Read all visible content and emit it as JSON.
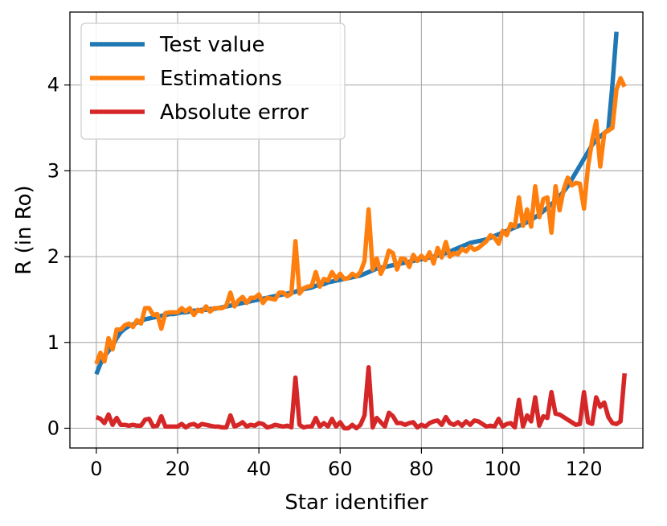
{
  "chart_data": {
    "type": "line",
    "xlabel": "Star identifier",
    "ylabel": "R (in Ro)",
    "xlim": [
      -6.5,
      134.5
    ],
    "ylim": [
      -0.23,
      4.85
    ],
    "xticks": [
      0,
      20,
      40,
      60,
      80,
      100,
      120
    ],
    "yticks": [
      0,
      1,
      2,
      3,
      4
    ],
    "grid": true,
    "legend": "top-left",
    "series": [
      {
        "name": "Test value",
        "color": "#1f77b4",
        "values": [
          0.63,
          0.75,
          0.84,
          0.9,
          0.96,
          1.05,
          1.12,
          1.16,
          1.19,
          1.21,
          1.23,
          1.25,
          1.27,
          1.28,
          1.29,
          1.3,
          1.31,
          1.32,
          1.33,
          1.33,
          1.34,
          1.35,
          1.35,
          1.36,
          1.37,
          1.37,
          1.38,
          1.38,
          1.39,
          1.39,
          1.4,
          1.41,
          1.42,
          1.43,
          1.44,
          1.45,
          1.46,
          1.47,
          1.48,
          1.49,
          1.5,
          1.51,
          1.52,
          1.53,
          1.54,
          1.55,
          1.56,
          1.57,
          1.58,
          1.59,
          1.61,
          1.62,
          1.63,
          1.64,
          1.66,
          1.67,
          1.68,
          1.7,
          1.71,
          1.72,
          1.73,
          1.74,
          1.75,
          1.76,
          1.77,
          1.78,
          1.8,
          1.82,
          1.84,
          1.86,
          1.87,
          1.88,
          1.89,
          1.9,
          1.91,
          1.92,
          1.93,
          1.94,
          1.95,
          1.96,
          1.97,
          1.98,
          1.99,
          2.0,
          2.01,
          2.03,
          2.04,
          2.06,
          2.08,
          2.1,
          2.12,
          2.14,
          2.16,
          2.17,
          2.18,
          2.19,
          2.2,
          2.22,
          2.24,
          2.26,
          2.28,
          2.3,
          2.32,
          2.34,
          2.36,
          2.38,
          2.4,
          2.43,
          2.46,
          2.49,
          2.53,
          2.57,
          2.61,
          2.65,
          2.7,
          2.76,
          2.82,
          2.9,
          2.98,
          3.06,
          3.14,
          3.22,
          3.3,
          3.36,
          3.4,
          3.44,
          3.48,
          4.0,
          4.62
        ]
      },
      {
        "name": "Estimations",
        "color": "#ff7f0e",
        "values": [
          0.75,
          0.88,
          0.78,
          1.05,
          0.92,
          1.15,
          1.15,
          1.2,
          1.22,
          1.18,
          1.26,
          1.22,
          1.4,
          1.4,
          1.32,
          1.33,
          1.16,
          1.34,
          1.35,
          1.35,
          1.35,
          1.4,
          1.36,
          1.4,
          1.32,
          1.38,
          1.36,
          1.42,
          1.36,
          1.4,
          1.4,
          1.4,
          1.43,
          1.58,
          1.42,
          1.49,
          1.53,
          1.46,
          1.52,
          1.52,
          1.56,
          1.46,
          1.52,
          1.51,
          1.5,
          1.58,
          1.58,
          1.54,
          1.57,
          2.18,
          1.57,
          1.63,
          1.65,
          1.66,
          1.82,
          1.65,
          1.74,
          1.72,
          1.82,
          1.74,
          1.8,
          1.74,
          1.75,
          1.8,
          1.77,
          1.82,
          1.95,
          2.55,
          1.85,
          1.98,
          1.8,
          1.9,
          2.07,
          2.04,
          1.85,
          1.98,
          1.97,
          1.88,
          2.02,
          1.95,
          2.01,
          1.96,
          2.05,
          1.92,
          2.1,
          1.99,
          2.17,
          2.0,
          2.04,
          2.03,
          2.09,
          2.06,
          2.12,
          2.08,
          2.1,
          2.14,
          2.18,
          2.25,
          2.22,
          2.15,
          2.3,
          2.25,
          2.38,
          2.35,
          2.69,
          2.36,
          2.55,
          2.35,
          2.82,
          2.46,
          2.67,
          2.69,
          2.28,
          2.82,
          2.54,
          2.78,
          2.92,
          2.83,
          2.86,
          2.85,
          2.56,
          3.05,
          3.35,
          3.58,
          3.05,
          3.44,
          3.47,
          3.5,
          3.95,
          4.08,
          3.98
        ]
      },
      {
        "name": "Absolute error",
        "color": "#d62728",
        "values": [
          0.13,
          0.11,
          0.06,
          0.16,
          0.04,
          0.12,
          0.04,
          0.04,
          0.03,
          0.04,
          0.03,
          0.03,
          0.1,
          0.11,
          0.02,
          0.03,
          0.14,
          0.02,
          0.02,
          0.02,
          0.02,
          0.05,
          0.01,
          0.04,
          0.05,
          0.02,
          0.05,
          0.04,
          0.03,
          0.02,
          0.02,
          0.01,
          0.01,
          0.15,
          0.02,
          0.04,
          0.07,
          0.02,
          0.04,
          0.03,
          0.06,
          0.05,
          0.01,
          0.02,
          0.04,
          0.03,
          0.02,
          0.03,
          0.01,
          0.59,
          0.04,
          0.01,
          0.02,
          0.02,
          0.12,
          0.02,
          0.06,
          0.02,
          0.11,
          0.02,
          0.07,
          0.0,
          0.0,
          0.04,
          0.0,
          0.04,
          0.15,
          0.71,
          0.01,
          0.12,
          0.07,
          0.02,
          0.18,
          0.14,
          0.06,
          0.06,
          0.04,
          0.06,
          0.07,
          0.01,
          0.04,
          0.02,
          0.06,
          0.08,
          0.09,
          0.04,
          0.13,
          0.06,
          0.04,
          0.07,
          0.03,
          0.08,
          0.04,
          0.09,
          0.08,
          0.05,
          0.02,
          0.03,
          0.02,
          0.11,
          0.02,
          0.05,
          0.06,
          0.01,
          0.33,
          0.02,
          0.15,
          0.08,
          0.36,
          0.03,
          0.14,
          0.12,
          0.42,
          0.17,
          0.16,
          0.13,
          0.1,
          0.07,
          0.04,
          0.05,
          0.42,
          0.07,
          0.05,
          0.36,
          0.25,
          0.3,
          0.13,
          0.06,
          0.05,
          0.08,
          0.64
        ]
      }
    ]
  }
}
